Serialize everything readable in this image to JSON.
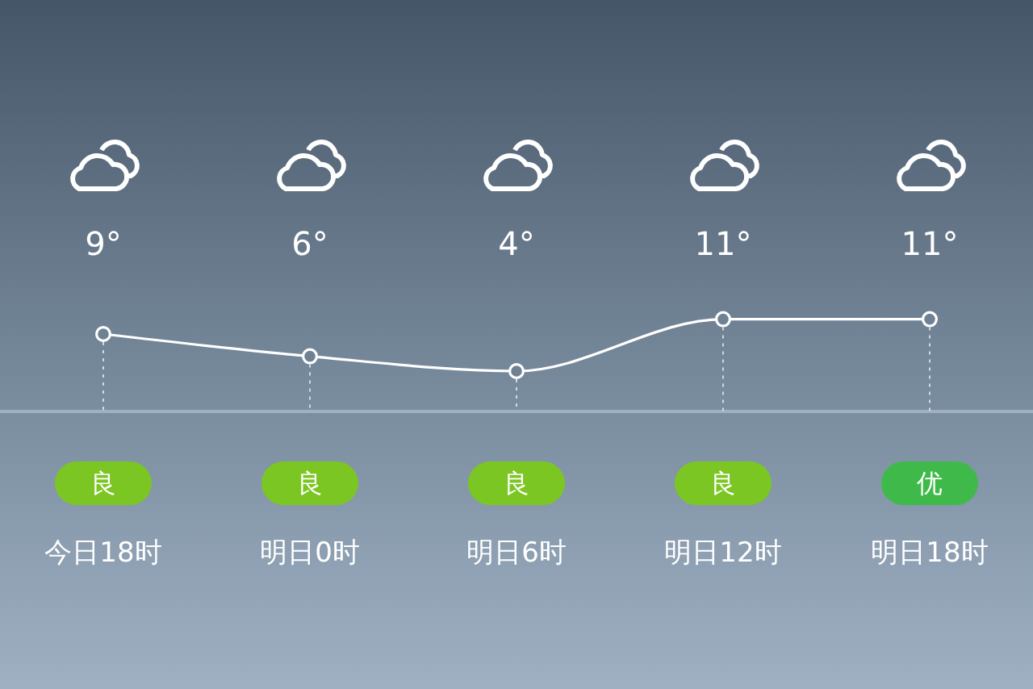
{
  "chart_data": {
    "type": "line",
    "categories": [
      "今日18时",
      "明日0时",
      "明日6时",
      "明日12时",
      "明日18时"
    ],
    "series": [
      {
        "color": "#ffffff",
        "values": [
          9,
          6,
          4,
          11,
          11
        ],
        "value_labels": [
          "9°",
          "6°",
          "4°",
          "11°",
          "11°"
        ]
      }
    ],
    "marker": "circle",
    "grid": "x",
    "annotations": [
      "良",
      "良",
      "良",
      "良",
      "优"
    ]
  }
}
